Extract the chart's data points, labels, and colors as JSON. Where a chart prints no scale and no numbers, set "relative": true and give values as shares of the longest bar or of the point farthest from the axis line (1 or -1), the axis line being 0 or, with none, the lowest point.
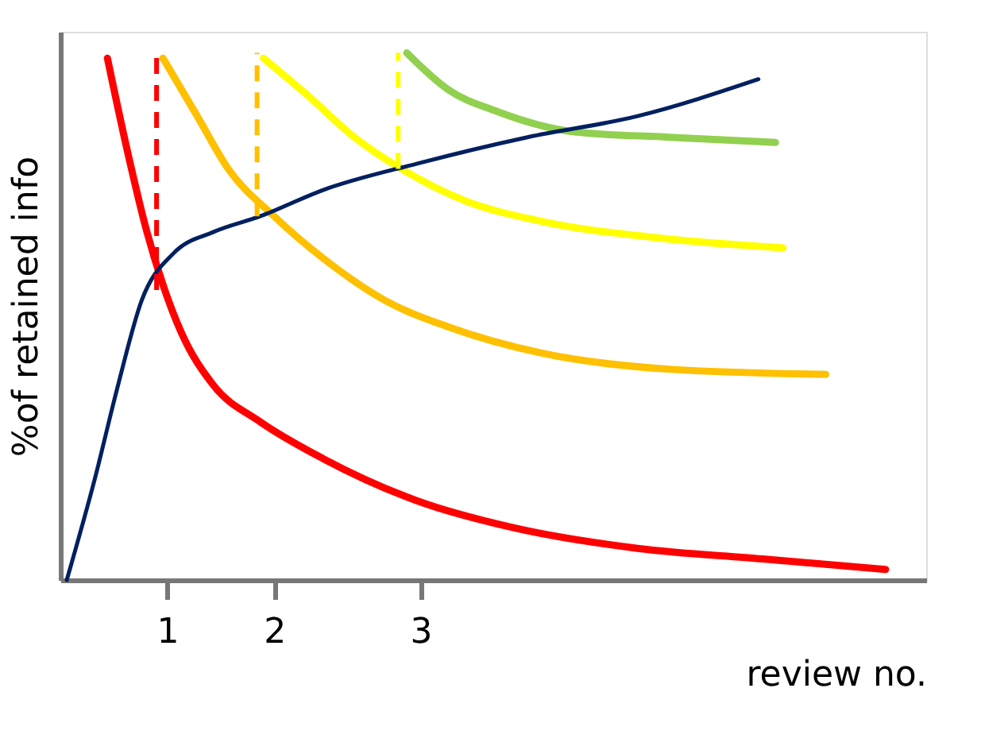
{
  "chart_data": {
    "type": "line",
    "relative": true,
    "xlabel": "review no.",
    "ylabel": "%of retained info",
    "xlim": [
      0,
      8.1
    ],
    "xticks": [
      1,
      2,
      {
        "value": 3.37,
        "label": "3"
      }
    ],
    "tick_labels": "x",
    "grid": false,
    "marker": "none",
    "series": [
      {
        "color": "#ff0000",
        "x": [
          0.44,
          0.62,
          0.81,
          0.96,
          1.13,
          1.43,
          1.87,
          2.46,
          3.34,
          4.22,
          5.4,
          6.57,
          7.72
        ],
        "values": [
          0.99,
          0.82,
          0.66,
          0.56,
          0.47,
          0.37,
          0.3,
          0.23,
          0.15,
          0.1,
          0.06,
          0.04,
          0.02
        ]
      },
      {
        "color": "#ffc000",
        "x": [
          0.96,
          1.28,
          1.57,
          2.0,
          2.46,
          3.04,
          3.63,
          4.51,
          5.69,
          7.16
        ],
        "values": [
          0.99,
          0.88,
          0.78,
          0.69,
          0.61,
          0.53,
          0.48,
          0.43,
          0.4,
          0.39
        ]
      },
      {
        "color": "#ffff00",
        "x": [
          1.9,
          2.31,
          2.75,
          3.19,
          3.78,
          4.51,
          5.54,
          6.76
        ],
        "values": [
          0.99,
          0.92,
          0.84,
          0.78,
          0.72,
          0.68,
          0.65,
          0.63
        ]
      },
      {
        "color": "#92d050",
        "x": [
          3.24,
          3.63,
          4.07,
          4.81,
          5.69,
          6.69
        ],
        "values": [
          1.0,
          0.93,
          0.89,
          0.85,
          0.84,
          0.83
        ]
      },
      {
        "color": "#002060",
        "x": [
          0.06,
          0.32,
          0.54,
          0.76,
          1.06,
          1.43,
          1.87,
          2.46,
          3.34,
          4.37,
          5.4,
          6.53
        ],
        "values": [
          0.0,
          0.19,
          0.37,
          0.53,
          0.62,
          0.66,
          0.69,
          0.74,
          0.79,
          0.84,
          0.88,
          0.95
        ]
      },
      {
        "color": "#ff0000",
        "line_style": "dashed",
        "x": [
          0.9,
          0.9
        ],
        "values": [
          0.55,
          1.0
        ]
      },
      {
        "color": "#ffc000",
        "line_style": "dashed",
        "x": [
          1.84,
          1.84
        ],
        "values": [
          0.69,
          1.0
        ]
      },
      {
        "color": "#ffff00",
        "line_style": "dashed",
        "x": [
          3.16,
          3.16
        ],
        "values": [
          0.78,
          1.0
        ]
      }
    ]
  }
}
